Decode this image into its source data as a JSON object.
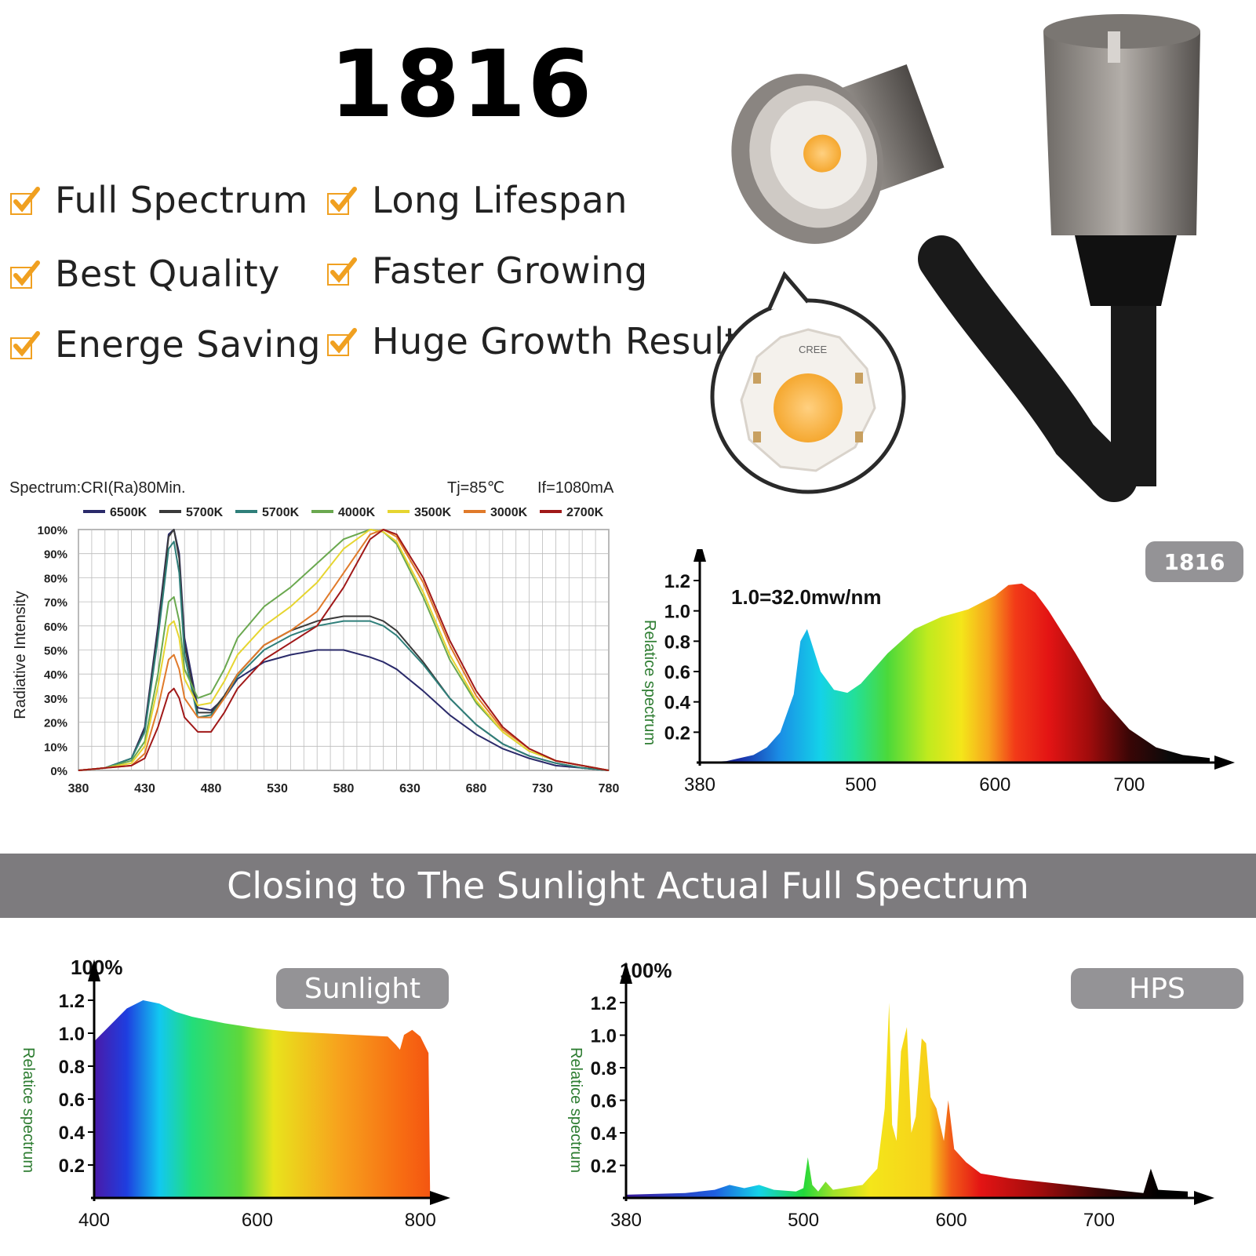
{
  "header": {
    "model": "1816",
    "features": [
      {
        "label": "Full Spectrum"
      },
      {
        "label": "Long Lifespan"
      },
      {
        "label": "Best Quality"
      },
      {
        "label": "Faster Growing"
      },
      {
        "label": "Energe Saving"
      },
      {
        "label": "Huge Growth Result"
      }
    ],
    "check_color": "#f0a020",
    "chip_brand": "CREE"
  },
  "banner": {
    "text": "Closing to The Sunlight Actual Full Spectrum",
    "color": "#7d7b7e"
  },
  "chart_data": [
    {
      "type": "line",
      "title": "Spectrum:CRI(Ra)80Min.",
      "annotations": [
        "Tj=85℃",
        "If=1080mA"
      ],
      "ylabel": "Radiative Intensity",
      "xlabel": "",
      "xlim": [
        380,
        780
      ],
      "ylim": [
        0,
        100
      ],
      "x_ticks": [
        380,
        430,
        480,
        530,
        580,
        630,
        680,
        730,
        780
      ],
      "y_ticks": [
        "0%",
        "10%",
        "20%",
        "30%",
        "40%",
        "50%",
        "60%",
        "70%",
        "80%",
        "90%",
        "100%"
      ],
      "grid": true,
      "legend_position": "top",
      "x": [
        380,
        400,
        420,
        430,
        440,
        448,
        452,
        456,
        460,
        470,
        480,
        490,
        500,
        520,
        540,
        560,
        580,
        600,
        610,
        620,
        640,
        660,
        680,
        700,
        720,
        740,
        760,
        780
      ],
      "series": [
        {
          "name": "6500K",
          "color": "#2a2a6a",
          "values": [
            0,
            1,
            5,
            18,
            60,
            98,
            100,
            90,
            55,
            26,
            25,
            30,
            38,
            45,
            48,
            50,
            50,
            47,
            45,
            42,
            33,
            23,
            15,
            9,
            5,
            2,
            1,
            0
          ]
        },
        {
          "name": "5700K",
          "color": "#3a3a3a",
          "values": [
            0,
            1,
            5,
            17,
            58,
            97,
            100,
            88,
            52,
            24,
            24,
            31,
            40,
            52,
            58,
            62,
            64,
            64,
            62,
            58,
            45,
            30,
            19,
            11,
            6,
            3,
            1,
            0
          ]
        },
        {
          "name": "5700K",
          "color": "#2f7f7a",
          "values": [
            0,
            1,
            5,
            16,
            55,
            92,
            95,
            82,
            48,
            22,
            23,
            30,
            39,
            50,
            56,
            60,
            62,
            62,
            60,
            56,
            44,
            30,
            19,
            11,
            6,
            3,
            1,
            0
          ]
        },
        {
          "name": "4000K",
          "color": "#6aa84f",
          "values": [
            0,
            1,
            4,
            12,
            40,
            70,
            72,
            62,
            42,
            30,
            32,
            42,
            55,
            68,
            76,
            86,
            96,
            100,
            99,
            94,
            72,
            46,
            28,
            16,
            8,
            4,
            2,
            0
          ]
        },
        {
          "name": "3500K",
          "color": "#e6d530",
          "values": [
            0,
            1,
            3,
            10,
            35,
            60,
            62,
            55,
            38,
            27,
            28,
            37,
            48,
            60,
            68,
            78,
            92,
            100,
            99,
            95,
            74,
            48,
            29,
            16,
            8,
            4,
            2,
            0
          ]
        },
        {
          "name": "3000K",
          "color": "#e07a2a",
          "values": [
            0,
            1,
            2,
            7,
            26,
            46,
            48,
            42,
            30,
            22,
            22,
            30,
            40,
            52,
            58,
            66,
            82,
            98,
            100,
            97,
            78,
            52,
            31,
            17,
            9,
            4,
            2,
            0
          ]
        },
        {
          "name": "2700K",
          "color": "#a01818",
          "values": [
            0,
            1,
            2,
            5,
            18,
            32,
            34,
            30,
            22,
            16,
            16,
            24,
            34,
            46,
            53,
            60,
            76,
            96,
            100,
            98,
            80,
            54,
            33,
            18,
            9,
            4,
            2,
            0
          ]
        }
      ]
    },
    {
      "type": "area",
      "label": "1816",
      "annotation": "1.0=32.0mw/nm",
      "ylabel": "Relatice spectrum",
      "xlim": [
        380,
        760
      ],
      "ylim": [
        0,
        1.2
      ],
      "x_ticks": [
        380,
        500,
        600,
        700
      ],
      "y_ticks": [
        "0.2",
        "0.4",
        "0.6",
        "0.8",
        "1.0",
        "1.2"
      ],
      "x": [
        380,
        400,
        420,
        430,
        440,
        450,
        455,
        460,
        470,
        480,
        490,
        500,
        520,
        540,
        560,
        580,
        600,
        610,
        620,
        630,
        640,
        660,
        680,
        700,
        720,
        740,
        760
      ],
      "values": [
        0,
        0.01,
        0.05,
        0.1,
        0.2,
        0.45,
        0.8,
        0.88,
        0.6,
        0.48,
        0.46,
        0.52,
        0.72,
        0.88,
        0.96,
        1.01,
        1.1,
        1.17,
        1.18,
        1.12,
        1.0,
        0.72,
        0.42,
        0.22,
        0.1,
        0.05,
        0.03
      ]
    },
    {
      "type": "area",
      "label": "Sunlight",
      "ylabel": "Relatice spectrum",
      "top_label": "100%",
      "xlim": [
        400,
        830
      ],
      "ylim": [
        0,
        1.2
      ],
      "x_ticks": [
        400,
        600,
        800
      ],
      "y_ticks": [
        "0.2",
        "0.4",
        "0.6",
        "0.8",
        "1.0",
        "1.2"
      ],
      "x": [
        400,
        420,
        440,
        460,
        480,
        500,
        520,
        560,
        600,
        640,
        680,
        720,
        760,
        770,
        775,
        780,
        790,
        800,
        810,
        812
      ],
      "values": [
        0.95,
        1.05,
        1.15,
        1.2,
        1.18,
        1.13,
        1.1,
        1.06,
        1.03,
        1.01,
        1.0,
        0.99,
        0.98,
        0.93,
        0.9,
        0.99,
        1.02,
        0.98,
        0.88,
        0.0
      ]
    },
    {
      "type": "area",
      "label": "HPS",
      "ylabel": "Relatice spectrum",
      "top_label": "100%",
      "xlim": [
        380,
        760
      ],
      "ylim": [
        0,
        1.2
      ],
      "x_ticks": [
        380,
        500,
        600,
        700
      ],
      "y_ticks": [
        "0.2",
        "0.4",
        "0.6",
        "0.8",
        "1.0",
        "1.2"
      ],
      "x": [
        380,
        420,
        440,
        450,
        460,
        470,
        480,
        495,
        500,
        503,
        506,
        510,
        515,
        520,
        540,
        550,
        555,
        558,
        560,
        563,
        566,
        570,
        573,
        576,
        580,
        583,
        586,
        590,
        595,
        598,
        602,
        610,
        620,
        640,
        660,
        680,
        700,
        720,
        730,
        735,
        740,
        760
      ],
      "values": [
        0.02,
        0.03,
        0.05,
        0.08,
        0.06,
        0.08,
        0.05,
        0.04,
        0.06,
        0.25,
        0.08,
        0.04,
        0.1,
        0.05,
        0.08,
        0.18,
        0.55,
        1.2,
        0.45,
        0.35,
        0.9,
        1.05,
        0.4,
        0.5,
        0.98,
        0.95,
        0.62,
        0.55,
        0.35,
        0.6,
        0.3,
        0.22,
        0.15,
        0.12,
        0.1,
        0.08,
        0.06,
        0.04,
        0.03,
        0.18,
        0.05,
        0.04
      ]
    }
  ]
}
